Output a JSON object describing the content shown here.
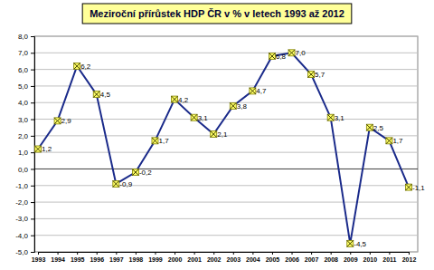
{
  "chart_data": {
    "type": "line",
    "title": "Meziroční přírůstek HDP  ČR v % v letech 1993 až 2012",
    "categories": [
      "1993",
      "1994",
      "1995",
      "1996",
      "1997",
      "1998",
      "1999",
      "2000",
      "2001",
      "2002",
      "2003",
      "2004",
      "2005",
      "2006",
      "2007",
      "2008",
      "2009",
      "2010",
      "2011",
      "2012"
    ],
    "values": [
      1.2,
      2.9,
      6.2,
      4.5,
      -0.9,
      -0.2,
      1.7,
      4.2,
      3.1,
      2.1,
      3.8,
      4.7,
      6.8,
      7.0,
      5.7,
      3.1,
      -4.5,
      2.5,
      1.7,
      -1.1
    ],
    "value_labels": [
      "1,2",
      "2,9",
      "6,2",
      "4,5",
      "-0,9",
      "-0,2",
      "1,7",
      "4,2",
      "3,1",
      "2,1",
      "3,8",
      "4,7",
      "6,8",
      "7,0",
      "5,7",
      "3,1",
      "-4,5",
      "2,5",
      "1,7",
      "-1,1"
    ],
    "color": "#1a2a8a",
    "marker": "x",
    "data_labels": true,
    "grid": true,
    "ylim": [
      -5,
      8
    ],
    "yticks": [
      {
        "value": 8,
        "label": "8,0"
      },
      {
        "value": 7,
        "label": "7,0"
      },
      {
        "value": 6,
        "label": "6,0"
      },
      {
        "value": 5,
        "label": "5,0"
      },
      {
        "value": 4,
        "label": "4,0"
      },
      {
        "value": 3,
        "label": "3,0"
      },
      {
        "value": 2,
        "label": "2,0"
      },
      {
        "value": 1,
        "label": "1,0"
      },
      {
        "value": 0,
        "label": "0,0"
      },
      {
        "value": -1,
        "label": "-1,0"
      },
      {
        "value": -2,
        "label": "-2,0"
      },
      {
        "value": -3,
        "label": "-3,0"
      },
      {
        "value": -4,
        "label": "-4,0"
      },
      {
        "value": -5,
        "label": "-5,0"
      }
    ]
  }
}
